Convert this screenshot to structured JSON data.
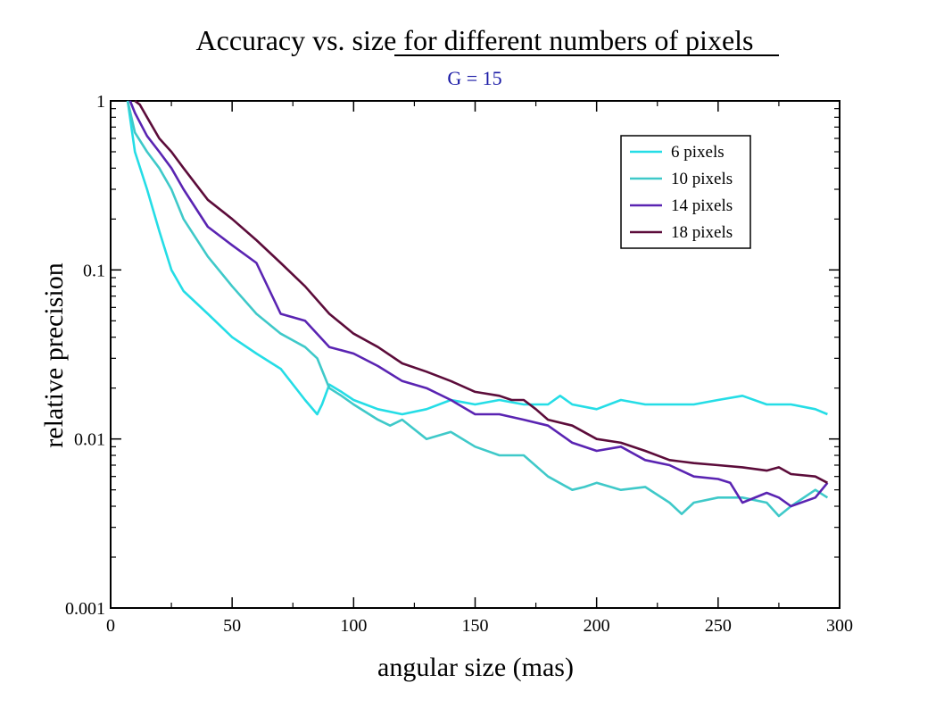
{
  "chart_data": {
    "type": "line",
    "title": "Accuracy vs. size  for different numbers of pixels",
    "subtitle": "G = 15",
    "xlabel": "angular size  (mas)",
    "ylabel": "relative  precision",
    "xlim": [
      0,
      300
    ],
    "ylim": [
      0.001,
      1
    ],
    "yscale": "log",
    "grid": false,
    "legend_position": "top-right",
    "x_ticks": [
      "0",
      "50",
      "100",
      "150",
      "200",
      "250",
      "300"
    ],
    "y_ticks": [
      "0.001",
      "0.01",
      "0.1",
      "1"
    ],
    "colors": {
      "title": "#000000",
      "subtitle": "#1a1aa6"
    },
    "series": [
      {
        "name": "6 pixels",
        "color": "#25dde6",
        "x": [
          7,
          10,
          15,
          20,
          25,
          30,
          40,
          50,
          60,
          70,
          80,
          85,
          87,
          90,
          95,
          100,
          110,
          120,
          130,
          140,
          150,
          160,
          170,
          180,
          185,
          190,
          200,
          210,
          220,
          230,
          240,
          250,
          260,
          270,
          280,
          290,
          295
        ],
        "y": [
          1.0,
          0.5,
          0.3,
          0.17,
          0.1,
          0.075,
          0.055,
          0.04,
          0.032,
          0.026,
          0.017,
          0.014,
          0.016,
          0.021,
          0.019,
          0.017,
          0.015,
          0.014,
          0.015,
          0.017,
          0.016,
          0.017,
          0.016,
          0.016,
          0.018,
          0.016,
          0.015,
          0.017,
          0.016,
          0.016,
          0.016,
          0.017,
          0.018,
          0.016,
          0.016,
          0.015,
          0.014
        ]
      },
      {
        "name": "10 pixels",
        "color": "#3fc9c9",
        "x": [
          7,
          10,
          15,
          20,
          25,
          30,
          40,
          50,
          60,
          70,
          80,
          85,
          90,
          95,
          100,
          110,
          115,
          120,
          130,
          140,
          150,
          160,
          170,
          180,
          190,
          195,
          200,
          210,
          220,
          230,
          235,
          240,
          250,
          260,
          270,
          275,
          280,
          290,
          295
        ],
        "y": [
          1.0,
          0.65,
          0.5,
          0.4,
          0.3,
          0.2,
          0.12,
          0.08,
          0.055,
          0.042,
          0.035,
          0.03,
          0.02,
          0.018,
          0.016,
          0.013,
          0.012,
          0.013,
          0.01,
          0.011,
          0.009,
          0.008,
          0.008,
          0.006,
          0.005,
          0.0052,
          0.0055,
          0.005,
          0.0052,
          0.0042,
          0.0036,
          0.0042,
          0.0045,
          0.0045,
          0.0042,
          0.0035,
          0.004,
          0.005,
          0.0045
        ]
      },
      {
        "name": "14 pixels",
        "color": "#5a24b2",
        "x": [
          8,
          10,
          15,
          20,
          25,
          30,
          40,
          50,
          60,
          70,
          80,
          90,
          100,
          110,
          120,
          130,
          140,
          150,
          160,
          170,
          180,
          190,
          200,
          210,
          220,
          230,
          240,
          250,
          255,
          260,
          270,
          275,
          280,
          290,
          295
        ],
        "y": [
          1.0,
          0.85,
          0.62,
          0.5,
          0.4,
          0.3,
          0.18,
          0.14,
          0.11,
          0.055,
          0.05,
          0.035,
          0.032,
          0.027,
          0.022,
          0.02,
          0.017,
          0.014,
          0.014,
          0.013,
          0.012,
          0.0095,
          0.0085,
          0.009,
          0.0075,
          0.007,
          0.006,
          0.0058,
          0.0055,
          0.0042,
          0.0048,
          0.0045,
          0.004,
          0.0045,
          0.0055
        ]
      },
      {
        "name": "18 pixels",
        "color": "#5c0c3a",
        "x": [
          10,
          12,
          15,
          20,
          25,
          30,
          40,
          50,
          60,
          70,
          80,
          90,
          100,
          110,
          120,
          130,
          140,
          150,
          160,
          165,
          170,
          175,
          180,
          190,
          200,
          210,
          220,
          230,
          240,
          250,
          260,
          270,
          275,
          280,
          290,
          295
        ],
        "y": [
          1.0,
          0.95,
          0.8,
          0.6,
          0.5,
          0.4,
          0.26,
          0.2,
          0.15,
          0.11,
          0.08,
          0.055,
          0.042,
          0.035,
          0.028,
          0.025,
          0.022,
          0.019,
          0.018,
          0.017,
          0.017,
          0.015,
          0.013,
          0.012,
          0.01,
          0.0095,
          0.0085,
          0.0075,
          0.0072,
          0.007,
          0.0068,
          0.0065,
          0.0068,
          0.0062,
          0.006,
          0.0055
        ]
      }
    ]
  }
}
